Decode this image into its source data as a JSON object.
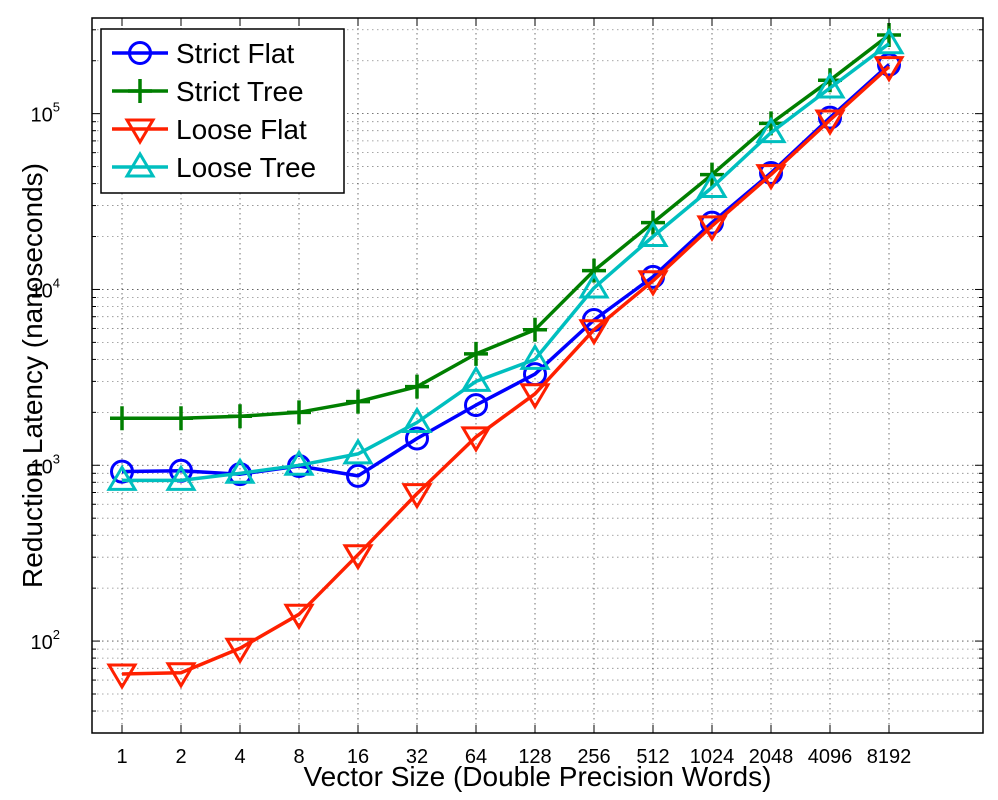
{
  "chart_data": {
    "type": "line",
    "xlabel": "Vector Size (Double Precision Words)",
    "ylabel": "Reduction Latency (nanoseconds)",
    "categories": [
      "1",
      "2",
      "4",
      "8",
      "16",
      "32",
      "64",
      "128",
      "256",
      "512",
      "1024",
      "2048",
      "4096",
      "8192"
    ],
    "y_scale": "log",
    "ylim": [
      30,
      350000
    ],
    "y_ticks": [
      {
        "value": 100,
        "base": "10",
        "exp": "2"
      },
      {
        "value": 1000,
        "base": "10",
        "exp": "3"
      },
      {
        "value": 10000,
        "base": "10",
        "exp": "4"
      },
      {
        "value": 100000,
        "base": "10",
        "exp": "5"
      }
    ],
    "grid": true,
    "legend_position": "top-left",
    "series": [
      {
        "name": "Strict Flat",
        "color": "#0000ff",
        "marker": "circle",
        "values": [
          920,
          930,
          890,
          990,
          870,
          1420,
          2200,
          3300,
          6700,
          11800,
          24000,
          46000,
          95000,
          190000
        ]
      },
      {
        "name": "Strict Tree",
        "color": "#007f00",
        "marker": "plus",
        "values": [
          1850,
          1850,
          1900,
          2000,
          2300,
          2800,
          4300,
          5900,
          12800,
          24000,
          45000,
          88000,
          155000,
          280000
        ]
      },
      {
        "name": "Loose Flat",
        "color": "#ff2000",
        "marker": "triangle-down",
        "values": [
          65,
          66,
          91,
          142,
          310,
          690,
          1450,
          2550,
          5900,
          11200,
          23000,
          45000,
          92000,
          185000
        ]
      },
      {
        "name": "Loose Tree",
        "color": "#00bfbf",
        "marker": "triangle-up",
        "values": [
          820,
          820,
          900,
          1000,
          1160,
          1750,
          3000,
          4000,
          10200,
          20000,
          38000,
          78000,
          140000,
          250000
        ]
      }
    ]
  }
}
